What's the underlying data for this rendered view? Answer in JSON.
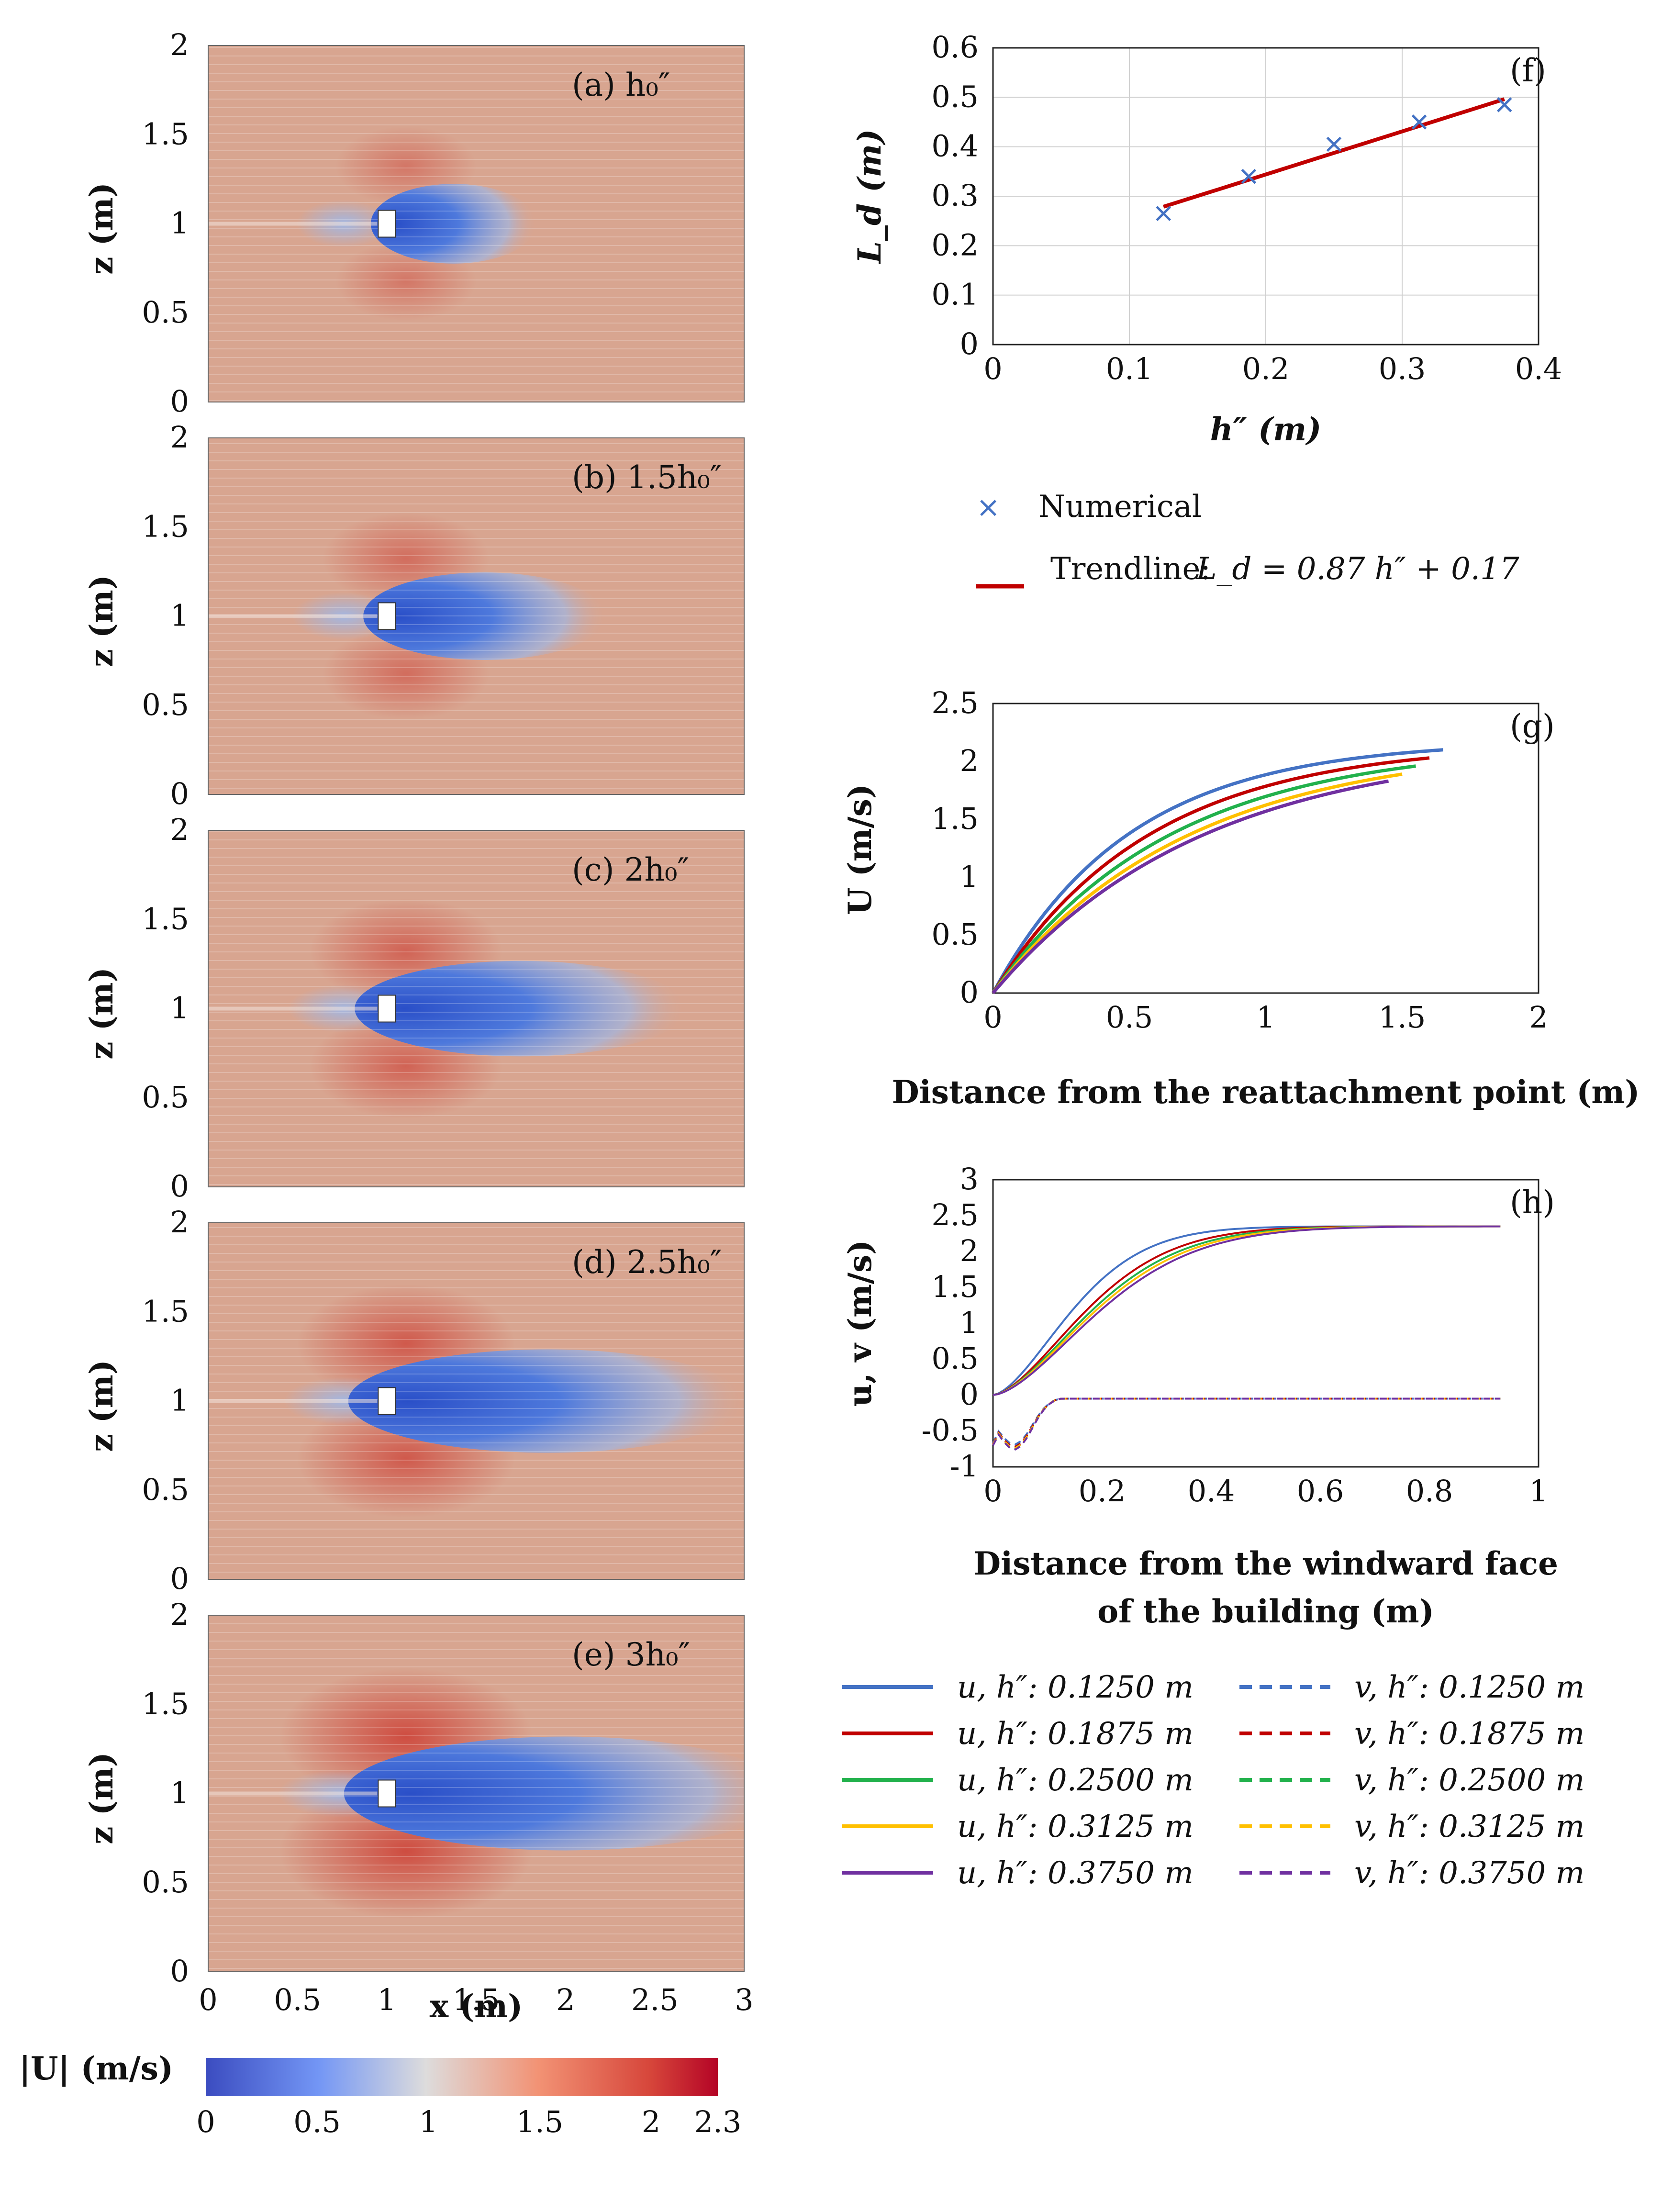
{
  "colors": {
    "flow_freestream": "#d8a590",
    "flow_wake": "#3a5fd0",
    "flow_high": "#cc3a30",
    "blue": "#4472c4",
    "red": "#c00000",
    "green": "#22b14c",
    "yellow": "#ffc000",
    "purple": "#7030a0"
  },
  "flow_panels": {
    "xlabel": "x (m)",
    "ylabel": "z (m)",
    "x_ticks": [
      "0",
      "0.5",
      "1",
      "1.5",
      "2",
      "2.5",
      "3"
    ],
    "y_ticks": [
      "0",
      "0.5",
      "1",
      "1.5",
      "2"
    ],
    "colorbar_label": "|U| (m/s)",
    "colorbar_ticks": [
      "0",
      "0.5",
      "1",
      "1.5",
      "2",
      "2.3"
    ]
  },
  "chart_data": [
    {
      "type": "heatmap",
      "panel": "(a)",
      "label": "(a)  h₀″",
      "xlabel": "x (m)",
      "ylabel": "z (m)",
      "xlim": [
        0,
        3
      ],
      "ylim": [
        0,
        2
      ],
      "building_center": [
        1.0,
        1.0
      ],
      "overspeed_intensity": 0.15,
      "wake_length": 0.75,
      "colorbar_range": [
        0,
        2.3
      ]
    },
    {
      "type": "heatmap",
      "panel": "(b)",
      "label": "(b) 1.5h₀″",
      "xlabel": "x (m)",
      "ylabel": "z (m)",
      "xlim": [
        0,
        3
      ],
      "ylim": [
        0,
        2
      ],
      "building_center": [
        1.0,
        1.0
      ],
      "overspeed_intensity": 0.3,
      "wake_length": 1.1,
      "colorbar_range": [
        0,
        2.3
      ]
    },
    {
      "type": "heatmap",
      "panel": "(c)",
      "label": "(c) 2h₀″",
      "xlabel": "x (m)",
      "ylabel": "z (m)",
      "xlim": [
        0,
        3
      ],
      "ylim": [
        0,
        2
      ],
      "building_center": [
        1.0,
        1.0
      ],
      "overspeed_intensity": 0.45,
      "wake_length": 1.5,
      "colorbar_range": [
        0,
        2.3
      ]
    },
    {
      "type": "heatmap",
      "panel": "(d)",
      "label": "(d) 2.5h₀″",
      "xlabel": "x (m)",
      "ylabel": "z (m)",
      "xlim": [
        0,
        3
      ],
      "ylim": [
        0,
        2
      ],
      "building_center": [
        1.0,
        1.0
      ],
      "overspeed_intensity": 0.6,
      "wake_length": 1.8,
      "colorbar_range": [
        0,
        2.3
      ]
    },
    {
      "type": "heatmap",
      "panel": "(e)",
      "label": "(e) 3h₀″",
      "xlabel": "x (m)",
      "ylabel": "z (m)",
      "xlim": [
        0,
        3
      ],
      "ylim": [
        0,
        2
      ],
      "building_center": [
        1.0,
        1.0
      ],
      "overspeed_intensity": 0.8,
      "wake_length": 2.0,
      "colorbar_range": [
        0,
        2.3
      ]
    },
    {
      "type": "scatter",
      "panel": "(f)",
      "xlabel": "h″ (m)",
      "ylabel": "L_d (m)",
      "xlim": [
        0,
        0.4
      ],
      "ylim": [
        0,
        0.6
      ],
      "x_ticks": [
        "0",
        "0.1",
        "0.2",
        "0.3",
        "0.4"
      ],
      "y_ticks": [
        "0",
        "0.1",
        "0.2",
        "0.3",
        "0.4",
        "0.5",
        "0.6"
      ],
      "series": [
        {
          "name": "Numerical",
          "x": [
            0.125,
            0.1875,
            0.25,
            0.3125,
            0.375
          ],
          "y": [
            0.265,
            0.34,
            0.405,
            0.45,
            0.485
          ]
        }
      ],
      "trendline": {
        "name": "Trendline:",
        "equation": "L_d = 0.87 h″ + 0.17",
        "slope": 0.87,
        "intercept": 0.17,
        "x_range": [
          0.125,
          0.375
        ]
      }
    },
    {
      "type": "line",
      "panel": "(g)",
      "xlabel": "Distance from the reattachment point (m)",
      "ylabel": "U (m/s)",
      "xlim": [
        0,
        2
      ],
      "ylim": [
        0,
        2.5
      ],
      "x_ticks": [
        "0",
        "0.5",
        "1",
        "1.5",
        "2"
      ],
      "y_ticks": [
        "0",
        "0.5",
        "1",
        "1.5",
        "2",
        "2.5"
      ],
      "series": [
        {
          "name": "h″ = 0.1250 m",
          "x_end": 1.65,
          "y_end": 2.1,
          "k": 2.0
        },
        {
          "name": "h″ = 0.1875 m",
          "x_end": 1.6,
          "y_end": 2.03,
          "k": 1.75
        },
        {
          "name": "h″ = 0.2500 m",
          "x_end": 1.55,
          "y_end": 1.96,
          "k": 1.55
        },
        {
          "name": "h″ = 0.3125 m",
          "x_end": 1.5,
          "y_end": 1.89,
          "k": 1.4
        },
        {
          "name": "h″ = 0.3750 m",
          "x_end": 1.45,
          "y_end": 1.83,
          "k": 1.3
        }
      ]
    },
    {
      "type": "line",
      "panel": "(h)",
      "xlabel_line1": "Distance from the windward face",
      "xlabel_line2": "of the building (m)",
      "ylabel": "u, v (m/s)",
      "xlim": [
        0,
        1
      ],
      "ylim": [
        -1,
        3
      ],
      "x_ticks": [
        "0",
        "0.2",
        "0.4",
        "0.6",
        "0.8",
        "1"
      ],
      "y_ticks": [
        "-1",
        "-0.5",
        "0",
        "0.5",
        "1",
        "1.5",
        "2",
        "2.5",
        "3"
      ],
      "x_end": 0.93,
      "u_plateau": 2.35,
      "v_end": -0.05,
      "series_u": [
        {
          "name": "u, h″: 0.1250 m",
          "x50": 0.14
        },
        {
          "name": "u, h″: 0.1875 m",
          "x50": 0.165
        },
        {
          "name": "u, h″: 0.2500 m",
          "x50": 0.175
        },
        {
          "name": "u, h″: 0.3125 m",
          "x50": 0.182
        },
        {
          "name": "u, h″: 0.3750 m",
          "x50": 0.19
        }
      ],
      "series_v": [
        {
          "name": "v, h″: 0.1250 m",
          "v_min": -0.65
        },
        {
          "name": "v, h″: 0.1875 m",
          "v_min": -0.68
        },
        {
          "name": "v, h″: 0.2500 m",
          "v_min": -0.7
        },
        {
          "name": "v, h″: 0.3125 m",
          "v_min": -0.7
        },
        {
          "name": "v, h″: 0.3750 m",
          "v_min": -0.72
        }
      ]
    }
  ],
  "legend_f": {
    "numerical": "Numerical",
    "trendline": "Trendline:",
    "equation": "L_d = 0.87 h″ + 0.17"
  },
  "legend_h": {
    "u": [
      "u, h″: 0.1250 m",
      "u, h″: 0.1875 m",
      "u, h″: 0.2500 m",
      "u, h″: 0.3125 m",
      "u, h″: 0.3750 m"
    ],
    "v": [
      "v, h″: 0.1250 m",
      "v, h″: 0.1875 m",
      "v, h″: 0.2500 m",
      "v, h″: 0.3125 m",
      "v, h″: 0.3750 m"
    ]
  }
}
